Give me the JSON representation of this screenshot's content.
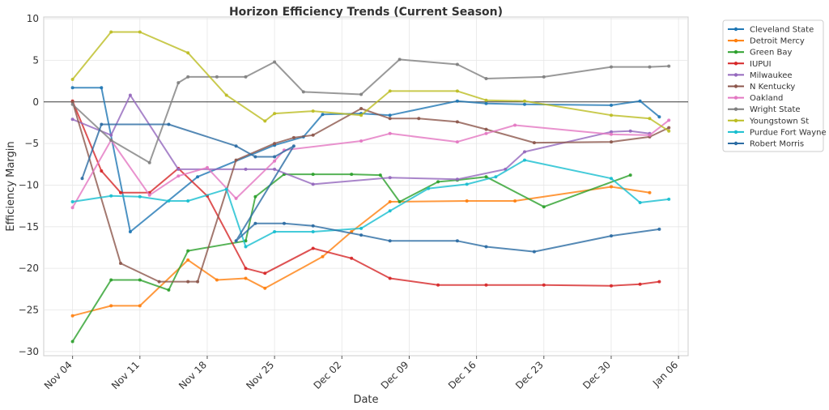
{
  "chart_data": {
    "type": "line",
    "title": "Horizon Efficiency Trends (Current Season)",
    "xlabel": "Date",
    "ylabel": "Efficiency Margin",
    "x_range": [
      "2023-11-01",
      "2024-01-07"
    ],
    "ylim": [
      -30.5,
      10.2
    ],
    "x_ticks": [
      {
        "date": "2023-11-04",
        "label": "Nov 04"
      },
      {
        "date": "2023-11-11",
        "label": "Nov 11"
      },
      {
        "date": "2023-11-18",
        "label": "Nov 18"
      },
      {
        "date": "2023-11-25",
        "label": "Nov 25"
      },
      {
        "date": "2023-12-02",
        "label": "Dec 02"
      },
      {
        "date": "2023-12-09",
        "label": "Dec 09"
      },
      {
        "date": "2023-12-16",
        "label": "Dec 16"
      },
      {
        "date": "2023-12-23",
        "label": "Dec 23"
      },
      {
        "date": "2023-12-30",
        "label": "Dec 30"
      },
      {
        "date": "2024-01-06",
        "label": "Jan 06"
      }
    ],
    "y_ticks": [
      10,
      5,
      0,
      -5,
      -10,
      -15,
      -20,
      -25,
      -30
    ],
    "grid": true,
    "zero_line": true,
    "legend_position": "outside-right",
    "series": [
      {
        "name": "Cleveland State",
        "color": "#1f77b4",
        "points": [
          [
            "2023-11-04",
            1.7
          ],
          [
            "2023-11-07",
            1.7
          ],
          [
            "2023-11-10",
            -15.6
          ],
          [
            "2023-11-17",
            -9.0
          ],
          [
            "2023-11-25",
            -5.2
          ],
          [
            "2023-11-28",
            -4.2
          ],
          [
            "2023-11-30",
            -1.5
          ],
          [
            "2023-12-04",
            -1.4
          ],
          [
            "2023-12-07",
            -1.6
          ],
          [
            "2023-12-14",
            0.1
          ],
          [
            "2023-12-17",
            -0.2
          ],
          [
            "2023-12-21",
            -0.3
          ],
          [
            "2023-12-30",
            -0.4
          ],
          [
            "2024-01-02",
            0.1
          ],
          [
            "2024-01-04",
            -1.8
          ]
        ]
      },
      {
        "name": "Detroit Mercy",
        "color": "#ff7f0e",
        "points": [
          [
            "2023-11-04",
            -25.7
          ],
          [
            "2023-11-08",
            -24.5
          ],
          [
            "2023-11-11",
            -24.5
          ],
          [
            "2023-11-16",
            -19.0
          ],
          [
            "2023-11-19",
            -21.4
          ],
          [
            "2023-11-22",
            -21.2
          ],
          [
            "2023-11-24",
            -22.4
          ],
          [
            "2023-11-30",
            -18.6
          ],
          [
            "2023-12-03",
            -15.6
          ],
          [
            "2023-12-07",
            -12.0
          ],
          [
            "2023-12-15",
            -11.9
          ],
          [
            "2023-12-20",
            -11.9
          ],
          [
            "2023-12-30",
            -10.2
          ],
          [
            "2024-01-03",
            -10.9
          ]
        ]
      },
      {
        "name": "Green Bay",
        "color": "#2ca02c",
        "points": [
          [
            "2023-11-04",
            -28.8
          ],
          [
            "2023-11-08",
            -21.4
          ],
          [
            "2023-11-11",
            -21.4
          ],
          [
            "2023-11-14",
            -22.6
          ],
          [
            "2023-11-16",
            -17.9
          ],
          [
            "2023-11-22",
            -16.7
          ],
          [
            "2023-11-23",
            -11.4
          ],
          [
            "2023-11-26",
            -8.7
          ],
          [
            "2023-11-29",
            -8.7
          ],
          [
            "2023-12-03",
            -8.7
          ],
          [
            "2023-12-06",
            -8.8
          ],
          [
            "2023-12-08",
            -12.0
          ],
          [
            "2023-12-12",
            -9.6
          ],
          [
            "2023-12-14",
            -9.4
          ],
          [
            "2023-12-17",
            -9.0
          ],
          [
            "2023-12-23",
            -12.6
          ],
          [
            "2024-01-01",
            -8.8
          ]
        ]
      },
      {
        "name": "IUPUI",
        "color": "#d62728",
        "points": [
          [
            "2023-11-04",
            0.1
          ],
          [
            "2023-11-07",
            -8.3
          ],
          [
            "2023-11-09",
            -10.9
          ],
          [
            "2023-11-12",
            -10.9
          ],
          [
            "2023-11-15",
            -8.0
          ],
          [
            "2023-11-18",
            -11.3
          ],
          [
            "2023-11-22",
            -20.0
          ],
          [
            "2023-11-24",
            -20.6
          ],
          [
            "2023-11-29",
            -17.6
          ],
          [
            "2023-12-03",
            -18.8
          ],
          [
            "2023-12-07",
            -21.2
          ],
          [
            "2023-12-12",
            -22.0
          ],
          [
            "2023-12-17",
            -22.0
          ],
          [
            "2023-12-23",
            -22.0
          ],
          [
            "2023-12-30",
            -22.1
          ],
          [
            "2024-01-02",
            -21.9
          ],
          [
            "2024-01-04",
            -21.6
          ]
        ]
      },
      {
        "name": "Milwaukee",
        "color": "#9467bd",
        "points": [
          [
            "2023-11-04",
            -2.1
          ],
          [
            "2023-11-08",
            -4.0
          ],
          [
            "2023-11-10",
            0.8
          ],
          [
            "2023-11-15",
            -8.1
          ],
          [
            "2023-11-22",
            -8.1
          ],
          [
            "2023-11-25",
            -8.1
          ],
          [
            "2023-11-29",
            -9.9
          ],
          [
            "2023-12-07",
            -9.1
          ],
          [
            "2023-12-14",
            -9.3
          ],
          [
            "2023-12-19",
            -8.1
          ],
          [
            "2023-12-21",
            -6.0
          ],
          [
            "2023-12-30",
            -3.6
          ],
          [
            "2024-01-01",
            -3.5
          ],
          [
            "2024-01-03",
            -3.8
          ]
        ]
      },
      {
        "name": "N Kentucky",
        "color": "#8c564b",
        "points": [
          [
            "2023-11-04",
            0.0
          ],
          [
            "2023-11-09",
            -19.4
          ],
          [
            "2023-11-13",
            -21.6
          ],
          [
            "2023-11-16",
            -21.6
          ],
          [
            "2023-11-17",
            -21.6
          ],
          [
            "2023-11-21",
            -7.0
          ],
          [
            "2023-11-25",
            -5.0
          ],
          [
            "2023-11-27",
            -4.3
          ],
          [
            "2023-11-29",
            -4.0
          ],
          [
            "2023-12-04",
            -0.8
          ],
          [
            "2023-12-07",
            -2.0
          ],
          [
            "2023-12-10",
            -2.0
          ],
          [
            "2023-12-14",
            -2.4
          ],
          [
            "2023-12-17",
            -3.3
          ],
          [
            "2023-12-22",
            -4.9
          ],
          [
            "2023-12-30",
            -4.8
          ],
          [
            "2024-01-03",
            -4.2
          ],
          [
            "2024-01-05",
            -3.1
          ]
        ]
      },
      {
        "name": "Oakland",
        "color": "#e377c2",
        "points": [
          [
            "2023-11-04",
            -12.7
          ],
          [
            "2023-11-08",
            -4.6
          ],
          [
            "2023-11-12",
            -11.2
          ],
          [
            "2023-11-15",
            -8.9
          ],
          [
            "2023-11-18",
            -7.9
          ],
          [
            "2023-11-21",
            -11.6
          ],
          [
            "2023-11-25",
            -7.1
          ],
          [
            "2023-11-26",
            -5.8
          ],
          [
            "2023-12-04",
            -4.7
          ],
          [
            "2023-12-07",
            -3.8
          ],
          [
            "2023-12-14",
            -4.8
          ],
          [
            "2023-12-17",
            -3.8
          ],
          [
            "2023-12-20",
            -2.8
          ],
          [
            "2023-12-30",
            -3.9
          ],
          [
            "2024-01-03",
            -4.0
          ],
          [
            "2024-01-05",
            -2.2
          ]
        ]
      },
      {
        "name": "Wright State",
        "color": "#7f7f7f",
        "points": [
          [
            "2023-11-04",
            -0.3
          ],
          [
            "2023-11-08",
            -4.6
          ],
          [
            "2023-11-12",
            -7.3
          ],
          [
            "2023-11-15",
            2.3
          ],
          [
            "2023-11-16",
            3.0
          ],
          [
            "2023-11-19",
            3.0
          ],
          [
            "2023-11-22",
            3.0
          ],
          [
            "2023-11-25",
            4.8
          ],
          [
            "2023-11-28",
            1.2
          ],
          [
            "2023-12-04",
            0.9
          ],
          [
            "2023-12-08",
            5.1
          ],
          [
            "2023-12-14",
            4.5
          ],
          [
            "2023-12-17",
            2.8
          ],
          [
            "2023-12-23",
            3.0
          ],
          [
            "2023-12-30",
            4.2
          ],
          [
            "2024-01-03",
            4.2
          ],
          [
            "2024-01-05",
            4.3
          ]
        ]
      },
      {
        "name": "Youngstown St",
        "color": "#bcbd22",
        "points": [
          [
            "2023-11-04",
            2.7
          ],
          [
            "2023-11-08",
            8.4
          ],
          [
            "2023-11-11",
            8.4
          ],
          [
            "2023-11-16",
            5.9
          ],
          [
            "2023-11-20",
            0.8
          ],
          [
            "2023-11-24",
            -2.3
          ],
          [
            "2023-11-25",
            -1.4
          ],
          [
            "2023-11-29",
            -1.1
          ],
          [
            "2023-12-04",
            -1.6
          ],
          [
            "2023-12-07",
            1.3
          ],
          [
            "2023-12-14",
            1.3
          ],
          [
            "2023-12-17",
            0.2
          ],
          [
            "2023-12-21",
            0.1
          ],
          [
            "2023-12-30",
            -1.6
          ],
          [
            "2024-01-03",
            -2.0
          ],
          [
            "2024-01-05",
            -3.5
          ]
        ]
      },
      {
        "name": "Purdue Fort Wayne",
        "color": "#17becf",
        "points": [
          [
            "2023-11-04",
            -12.0
          ],
          [
            "2023-11-08",
            -11.3
          ],
          [
            "2023-11-11",
            -11.4
          ],
          [
            "2023-11-14",
            -11.9
          ],
          [
            "2023-11-16",
            -11.9
          ],
          [
            "2023-11-20",
            -10.5
          ],
          [
            "2023-11-22",
            -17.4
          ],
          [
            "2023-11-25",
            -15.6
          ],
          [
            "2023-11-29",
            -15.6
          ],
          [
            "2023-12-04",
            -15.2
          ],
          [
            "2023-12-07",
            -13.1
          ],
          [
            "2023-12-11",
            -10.4
          ],
          [
            "2023-12-15",
            -9.9
          ],
          [
            "2023-12-18",
            -9.0
          ],
          [
            "2023-12-21",
            -7.0
          ],
          [
            "2023-12-30",
            -9.2
          ],
          [
            "2024-01-02",
            -12.1
          ],
          [
            "2024-01-05",
            -11.7
          ]
        ]
      },
      {
        "name": "Robert Morris",
        "color": "#2b6ca3",
        "points": [
          [
            "2023-11-05",
            -9.2
          ],
          [
            "2023-11-07",
            -2.7
          ],
          [
            "2023-11-14",
            -2.7
          ],
          [
            "2023-11-21",
            -5.3
          ],
          [
            "2023-11-23",
            -6.6
          ],
          [
            "2023-11-25",
            -6.6
          ],
          [
            "2023-11-27",
            -5.3
          ],
          [
            "2023-11-21",
            -16.7
          ],
          [
            "2023-11-23",
            -14.6
          ],
          [
            "2023-11-26",
            -14.6
          ],
          [
            "2023-11-29",
            -14.9
          ],
          [
            "2023-12-04",
            -16.0
          ],
          [
            "2023-12-07",
            -16.7
          ],
          [
            "2023-12-14",
            -16.7
          ],
          [
            "2023-12-17",
            -17.4
          ],
          [
            "2023-12-22",
            -18.0
          ],
          [
            "2023-12-30",
            -16.1
          ],
          [
            "2024-01-04",
            -15.3
          ]
        ]
      }
    ]
  }
}
